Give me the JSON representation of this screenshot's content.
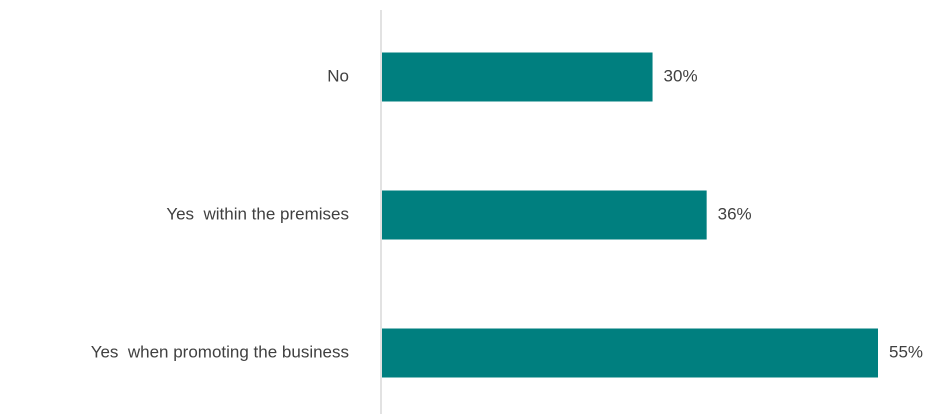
{
  "chart_data": {
    "type": "bar",
    "orientation": "horizontal",
    "title": "",
    "xlabel": "",
    "ylabel": "",
    "categories": [
      "No",
      "Yes  within the premises",
      "Yes  when promoting the business"
    ],
    "values": [
      30,
      36,
      55
    ],
    "value_labels": [
      "30%",
      "36%",
      "55%"
    ],
    "xlim": [
      0,
      60
    ],
    "grid": false,
    "legend": "none",
    "bar_color": "#007f7f",
    "axis_color": "#d9d9d9",
    "text_color": "#404040"
  }
}
